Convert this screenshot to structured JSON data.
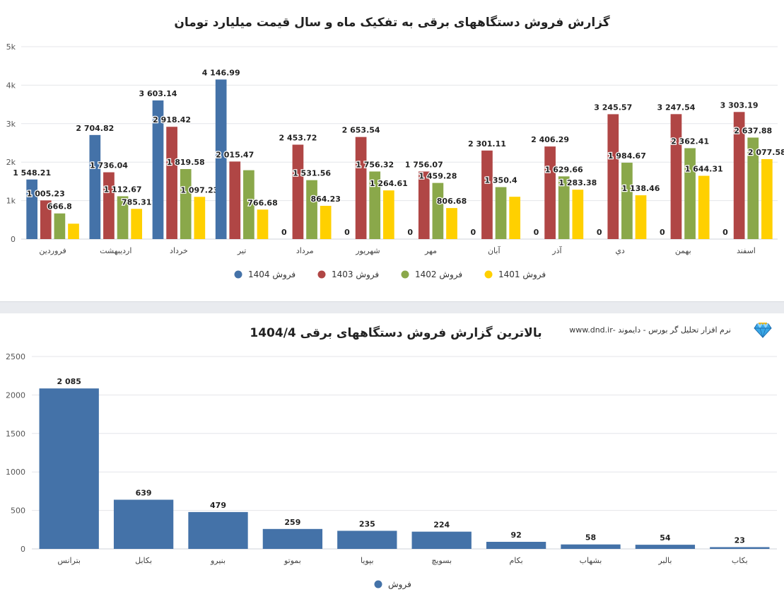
{
  "chart_data": [
    {
      "type": "bar",
      "title": "گزارش فروش دستگاههای برقی به تفکیک ماه و سال قیمت میلیارد تومان",
      "categories": [
        "فروردین",
        "اردیبهشت",
        "خرداد",
        "تیر",
        "مرداد",
        "شهریور",
        "مهر",
        "آبان",
        "آذر",
        "دي",
        "بهمن",
        "اسفند"
      ],
      "series": [
        {
          "name": "فروش 1404",
          "color": "#4472a8",
          "values": [
            1548.21,
            2704.82,
            3603.14,
            4146.99,
            0,
            0,
            0,
            0,
            0,
            0,
            0,
            0
          ],
          "labels": [
            "1 548.21",
            "2 704.82",
            "3 603.14",
            "4 146.99",
            "0",
            "0",
            "0",
            "0",
            "0",
            "0",
            "0",
            "0"
          ]
        },
        {
          "name": "فروش 1403",
          "color": "#b04645",
          "values": [
            1005.23,
            1736.04,
            2918.42,
            2015.47,
            2453.72,
            2653.54,
            1756.07,
            2301.11,
            2406.29,
            3245.57,
            3247.54,
            3303.19
          ],
          "labels": [
            "1 005.23",
            "1 736.04",
            "2 918.42",
            "2 015.47",
            "2 453.72",
            "2 653.54",
            "1 756.07",
            "2 301.11",
            "2 406.29",
            "3 245.57",
            "3 247.54",
            "3 303.19"
          ]
        },
        {
          "name": "فروش 1402",
          "color": "#8aa84a",
          "values": [
            666.8,
            1112.67,
            1819.58,
            1790,
            1531.56,
            1756.32,
            1459.28,
            1350.4,
            1629.66,
            1984.67,
            2362.41,
            2637.88
          ],
          "labels": [
            "666.8",
            "1 112.67",
            "1 819.58",
            "",
            "1 531.56",
            "1 756.32",
            "1 459.28",
            "1 350.4",
            "1 629.66",
            "1 984.67",
            "2 362.41",
            "2 637.88"
          ]
        },
        {
          "name": "فروش 1401",
          "color": "#ffd000",
          "values": [
            400,
            785.31,
            1097.23,
            766.68,
            864.23,
            1264.61,
            806.68,
            1100,
            1283.38,
            1138.46,
            1644.31,
            2077.58
          ],
          "labels": [
            "",
            "785.31",
            "1 097.23",
            "766.68",
            "864.23",
            "1 264.61",
            "806.68",
            "",
            "1 283.38",
            "1 138.46",
            "1 644.31",
            "2 077.58"
          ]
        }
      ],
      "ylim": [
        0,
        5000
      ],
      "yticks": [
        0,
        1000,
        2000,
        3000,
        4000,
        5000
      ],
      "ytick_labels": [
        "0",
        "1k",
        "2k",
        "3k",
        "4k",
        "5k"
      ],
      "grid": true,
      "legend_placement": "bottom"
    },
    {
      "type": "bar",
      "title": "بالاترین گزارش فروش دستگاههای برقی 1404/4",
      "categories": [
        "بترانس",
        "بکابل",
        "بنیرو",
        "بموتو",
        "بپویا",
        "بسویچ",
        "بکام",
        "بشهاب",
        "بالبر",
        "بکاب"
      ],
      "series": [
        {
          "name": "فروش",
          "color": "#4472a8",
          "values": [
            2085,
            639,
            479,
            259,
            235,
            224,
            92,
            58,
            54,
            23
          ],
          "labels": [
            "2 085",
            "639",
            "479",
            "259",
            "235",
            "224",
            "92",
            "58",
            "54",
            "23"
          ]
        }
      ],
      "ylim": [
        0,
        2500
      ],
      "yticks": [
        0,
        500,
        1000,
        1500,
        2000,
        2500
      ],
      "ytick_labels": [
        "0",
        "500",
        "1000",
        "1500",
        "2000",
        "2500"
      ],
      "grid": true,
      "legend_placement": "bottom"
    }
  ],
  "brand": {
    "text": "نرم افزار تحلیل گر بورس - دایموند -www.dnd.ir",
    "icon": "diamond-icon"
  }
}
